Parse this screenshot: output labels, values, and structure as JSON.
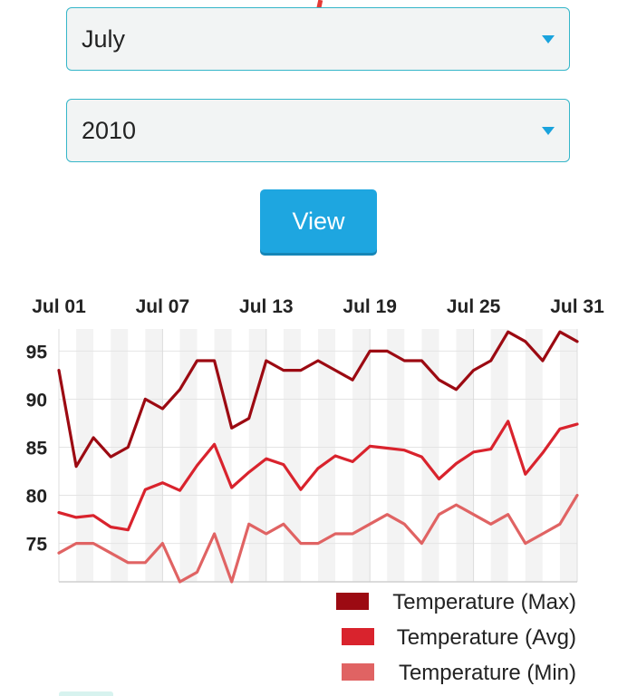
{
  "form": {
    "month_value": "July",
    "year_value": "2010",
    "view_label": "View"
  },
  "colors": {
    "accent": "#1ea6e0",
    "select_border": "#35b6c9",
    "max": "#9c0a12",
    "avg": "#d9232d",
    "min": "#e06363"
  },
  "chart_data": {
    "type": "line",
    "x": [
      "Jul 01",
      "Jul 02",
      "Jul 03",
      "Jul 04",
      "Jul 05",
      "Jul 06",
      "Jul 07",
      "Jul 08",
      "Jul 09",
      "Jul 10",
      "Jul 11",
      "Jul 12",
      "Jul 13",
      "Jul 14",
      "Jul 15",
      "Jul 16",
      "Jul 17",
      "Jul 18",
      "Jul 19",
      "Jul 20",
      "Jul 21",
      "Jul 22",
      "Jul 23",
      "Jul 24",
      "Jul 25",
      "Jul 26",
      "Jul 27",
      "Jul 28",
      "Jul 29",
      "Jul 30",
      "Jul 31"
    ],
    "x_tick_labels": [
      "Jul 01",
      "Jul 07",
      "Jul 13",
      "Jul 19",
      "Jul 25",
      "Jul 31"
    ],
    "y_ticks": [
      75,
      80,
      85,
      90,
      95
    ],
    "ylim": [
      71,
      97.3
    ],
    "grid": true,
    "legend_position": "bottom-right",
    "series": [
      {
        "name": "Temperature (Max)",
        "values": [
          93,
          83,
          86,
          84,
          85,
          90,
          89,
          91,
          94,
          94,
          87,
          88,
          94,
          93,
          93,
          94,
          93,
          92,
          95,
          95,
          94,
          94,
          92,
          91,
          93,
          94,
          97,
          96,
          94,
          97,
          96
        ]
      },
      {
        "name": "Temperature (Avg)",
        "values": [
          78.2,
          77.7,
          77.9,
          76.7,
          76.4,
          80.6,
          81.3,
          80.5,
          83.1,
          85.3,
          80.8,
          82.4,
          83.8,
          83.2,
          80.6,
          82.8,
          84.1,
          83.5,
          85.1,
          84.9,
          84.7,
          84.0,
          81.7,
          83.3,
          84.5,
          84.8,
          87.7,
          82.2,
          84.4,
          86.9,
          87.4
        ]
      },
      {
        "name": "Temperature (Min)",
        "values": [
          74,
          75,
          75,
          74,
          73,
          73,
          75,
          71,
          72,
          76,
          71,
          77,
          76,
          77,
          75,
          75,
          76,
          76,
          77,
          78,
          77,
          75,
          78,
          79,
          78,
          77,
          78,
          75,
          76,
          77,
          80
        ]
      }
    ]
  }
}
